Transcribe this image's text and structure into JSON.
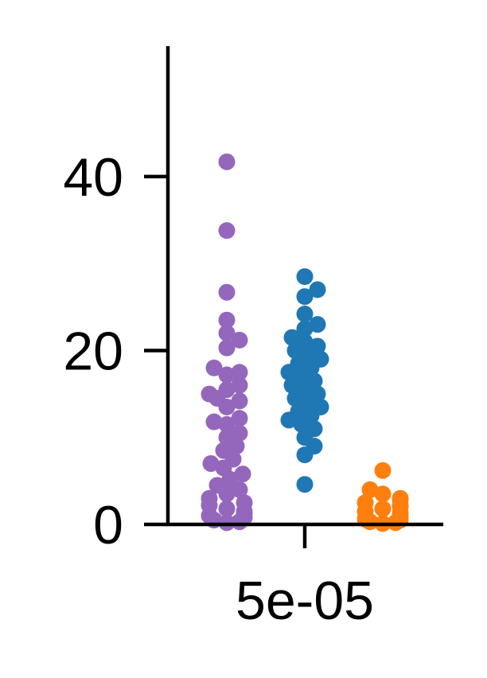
{
  "chart_data": {
    "type": "scatter",
    "subtype": "strip",
    "title": "",
    "xlabel": "",
    "ylabel": "",
    "categories": [
      "5e-05"
    ],
    "ylim": [
      0,
      55
    ],
    "yticks": [
      0,
      20,
      40
    ],
    "grid": false,
    "spines": [
      "left",
      "bottom"
    ],
    "series": [
      {
        "color": "#9467bd",
        "group_offset": -1,
        "values": [
          41.7,
          33.8,
          26.7,
          23.5,
          22.0,
          21.2,
          20.3,
          18.0,
          17.5,
          17.2,
          16.0,
          15.5,
          15.0,
          14.5,
          14.2,
          13.5,
          12.2,
          11.8,
          11.5,
          10.5,
          10.0,
          9.0,
          8.5,
          7.5,
          7.0,
          6.5,
          5.8,
          5.2,
          4.5,
          4.0,
          3.5,
          3.0,
          2.5,
          2.2,
          1.8,
          1.5,
          1.2,
          1.0,
          0.8,
          0.5,
          0.3,
          0.2
        ]
      },
      {
        "color": "#1f77b4",
        "group_offset": 0,
        "values": [
          28.5,
          27.0,
          26.2,
          24.2,
          23.0,
          22.5,
          21.5,
          21.0,
          20.5,
          20.0,
          19.5,
          19.0,
          18.5,
          18.0,
          17.5,
          17.0,
          16.5,
          16.0,
          15.5,
          15.0,
          14.5,
          14.0,
          13.5,
          13.0,
          12.5,
          12.0,
          11.5,
          11.0,
          10.0,
          9.0,
          8.0,
          4.6
        ]
      },
      {
        "color": "#ff7f0e",
        "group_offset": 1,
        "values": [
          6.2,
          4.0,
          3.5,
          3.0,
          2.8,
          2.5,
          2.2,
          2.0,
          1.8,
          1.5,
          1.3,
          1.0,
          0.8,
          0.6,
          0.5,
          0.3,
          0.2,
          0.1
        ]
      }
    ]
  }
}
